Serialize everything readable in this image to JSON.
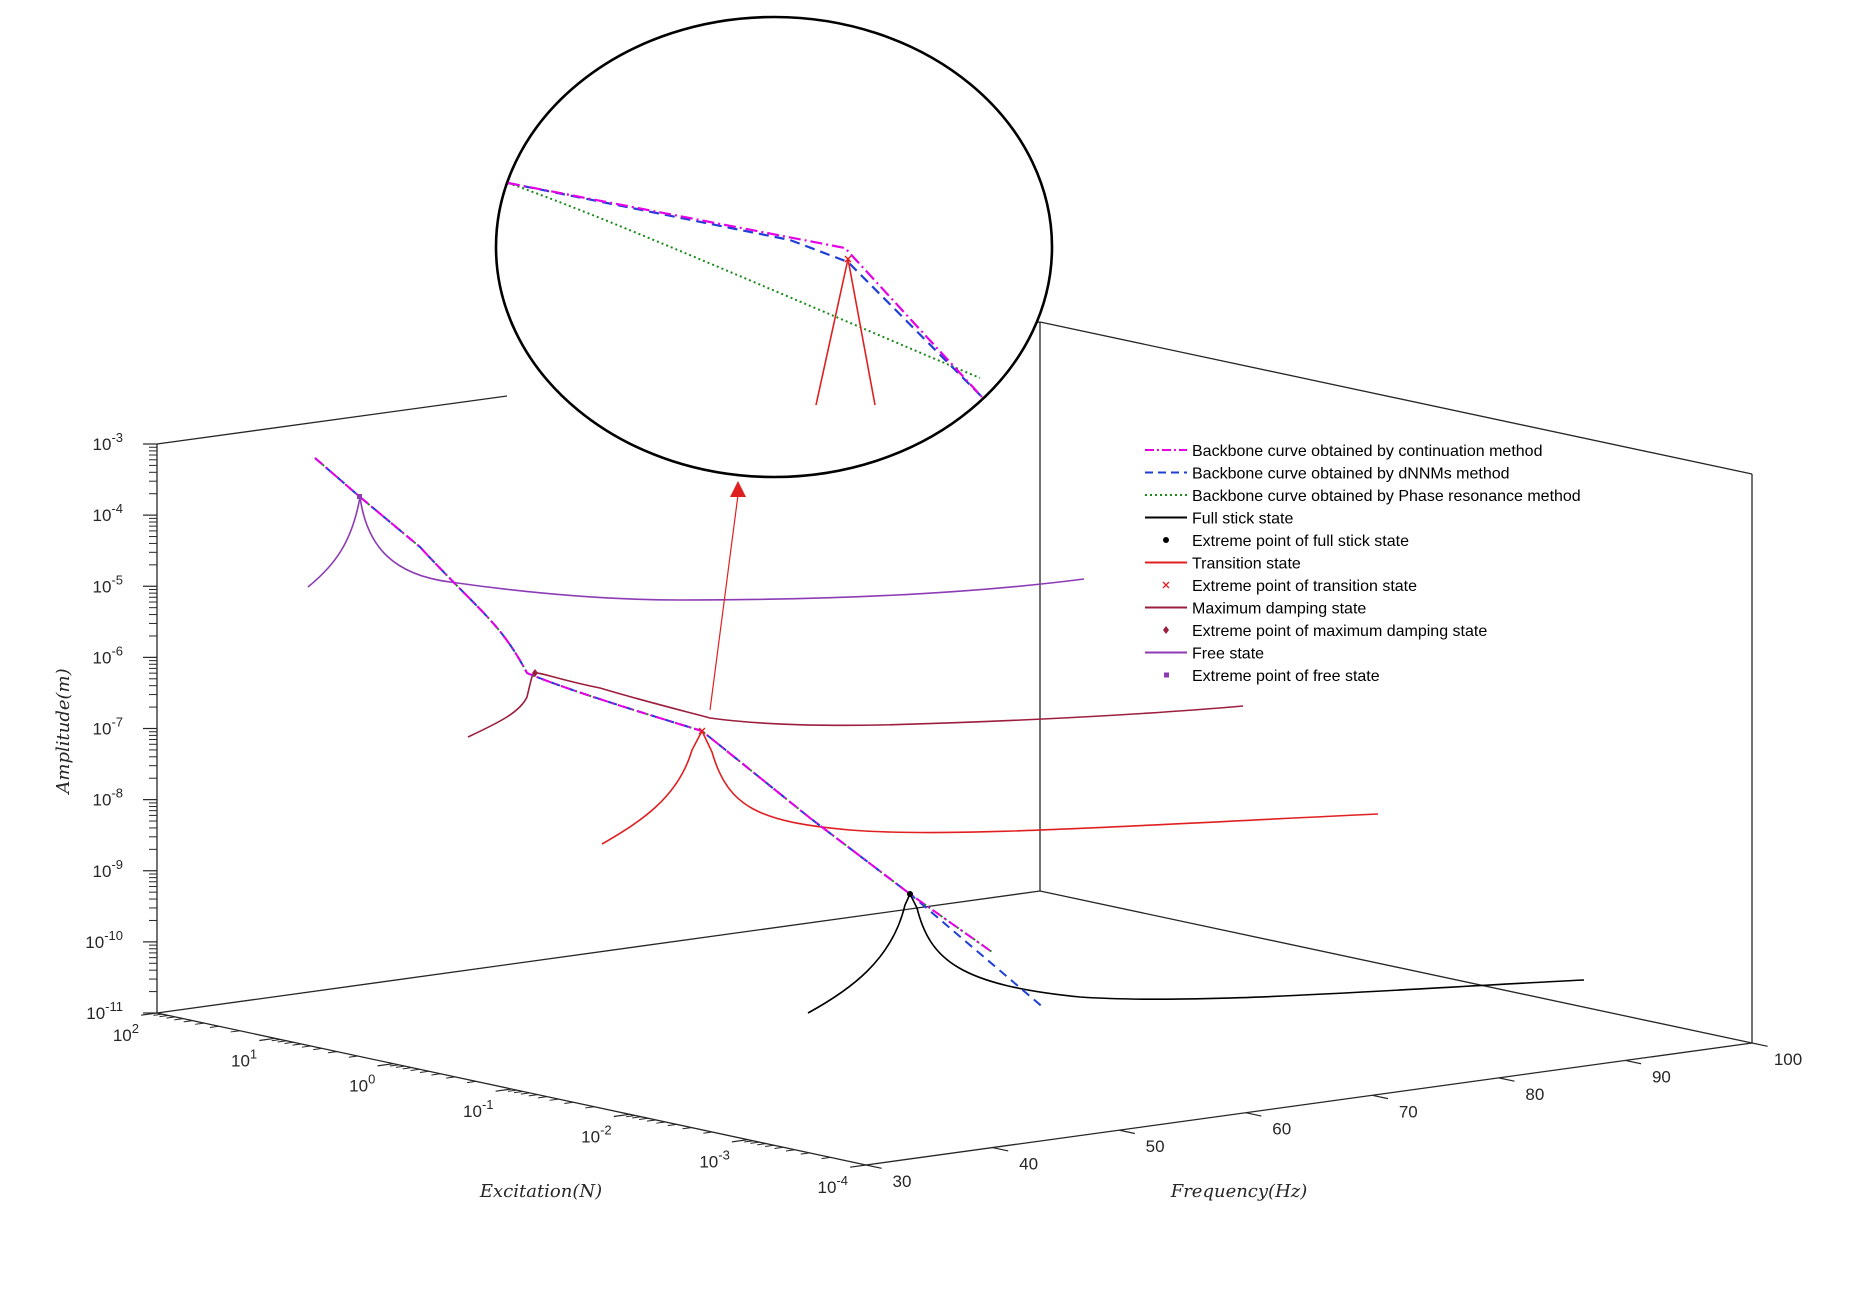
{
  "chart_data": {
    "type": "line3d",
    "title": "",
    "axes": {
      "x": {
        "label": "Excitation(N)",
        "scale": "log",
        "range": [
          0.0001,
          100
        ],
        "ticks": [
          {
            "value": 100,
            "base": "10",
            "exp": "2"
          },
          {
            "value": 10,
            "base": "10",
            "exp": "1"
          },
          {
            "value": 1,
            "base": "10",
            "exp": "0"
          },
          {
            "value": 0.1,
            "base": "10",
            "exp": "-1"
          },
          {
            "value": 0.01,
            "base": "10",
            "exp": "-2"
          },
          {
            "value": 0.001,
            "base": "10",
            "exp": "-3"
          },
          {
            "value": 0.0001,
            "base": "10",
            "exp": "-4"
          }
        ]
      },
      "y": {
        "label": "Frequency(Hz)",
        "scale": "linear",
        "range": [
          30,
          100
        ],
        "ticks": [
          "30",
          "40",
          "50",
          "60",
          "70",
          "80",
          "90",
          "100"
        ]
      },
      "z": {
        "label": "Amplitude(m)",
        "scale": "log",
        "range": [
          1e-11,
          0.001
        ],
        "ticks": [
          {
            "base": "10",
            "exp": "-3"
          },
          {
            "base": "10",
            "exp": "-4"
          },
          {
            "base": "10",
            "exp": "-5"
          },
          {
            "base": "10",
            "exp": "-6"
          },
          {
            "base": "10",
            "exp": "-7"
          },
          {
            "base": "10",
            "exp": "-8"
          },
          {
            "base": "10",
            "exp": "-9"
          },
          {
            "base": "10",
            "exp": "-10"
          },
          {
            "base": "10",
            "exp": "-11"
          }
        ]
      }
    },
    "legend": {
      "position": "upper-right",
      "entries": [
        {
          "label": "Backbone curve obtained by continuation method",
          "color": "#e600e6",
          "style": "dashdot"
        },
        {
          "label": "Backbone curve obtained by dNNMs method",
          "color": "#1f3fd6",
          "style": "dashed"
        },
        {
          "label": "Backbone curve obtained by Phase resonance method",
          "color": "#1a8a1a",
          "style": "dotted"
        },
        {
          "label": "Full stick state",
          "color": "#000000",
          "style": "solid"
        },
        {
          "label": "Extreme point of full stick state",
          "color": "#000000",
          "style": "marker-dot"
        },
        {
          "label": "Transition state",
          "color": "#e02020",
          "style": "solid"
        },
        {
          "label": "Extreme point of transition state",
          "color": "#e02020",
          "style": "marker-x"
        },
        {
          "label": "Maximum damping state",
          "color": "#9c1e3e",
          "style": "solid"
        },
        {
          "label": "Extreme point of maximum damping state",
          "color": "#9c1e3e",
          "style": "marker-diamond"
        },
        {
          "label": "Free state",
          "color": "#8c3bb5",
          "style": "solid"
        },
        {
          "label": "Extreme point of free state",
          "color": "#8c3bb5",
          "style": "marker-square"
        }
      ]
    },
    "series": [
      {
        "name": "Free state",
        "excitation": 10,
        "peak_frequency": 36,
        "peak_amplitude": 0.00015
      },
      {
        "name": "Maximum damping state",
        "excitation": 0.5,
        "peak_frequency": 47,
        "peak_amplitude": 5e-07
      },
      {
        "name": "Transition state",
        "excitation": 0.02,
        "peak_frequency": 52,
        "peak_amplitude": 9e-08
      },
      {
        "name": "Full stick state",
        "excitation": 0.001,
        "peak_frequency": 64,
        "peak_amplitude": 3e-10
      }
    ],
    "inset": {
      "shape": "ellipse",
      "description_none": ""
    }
  }
}
